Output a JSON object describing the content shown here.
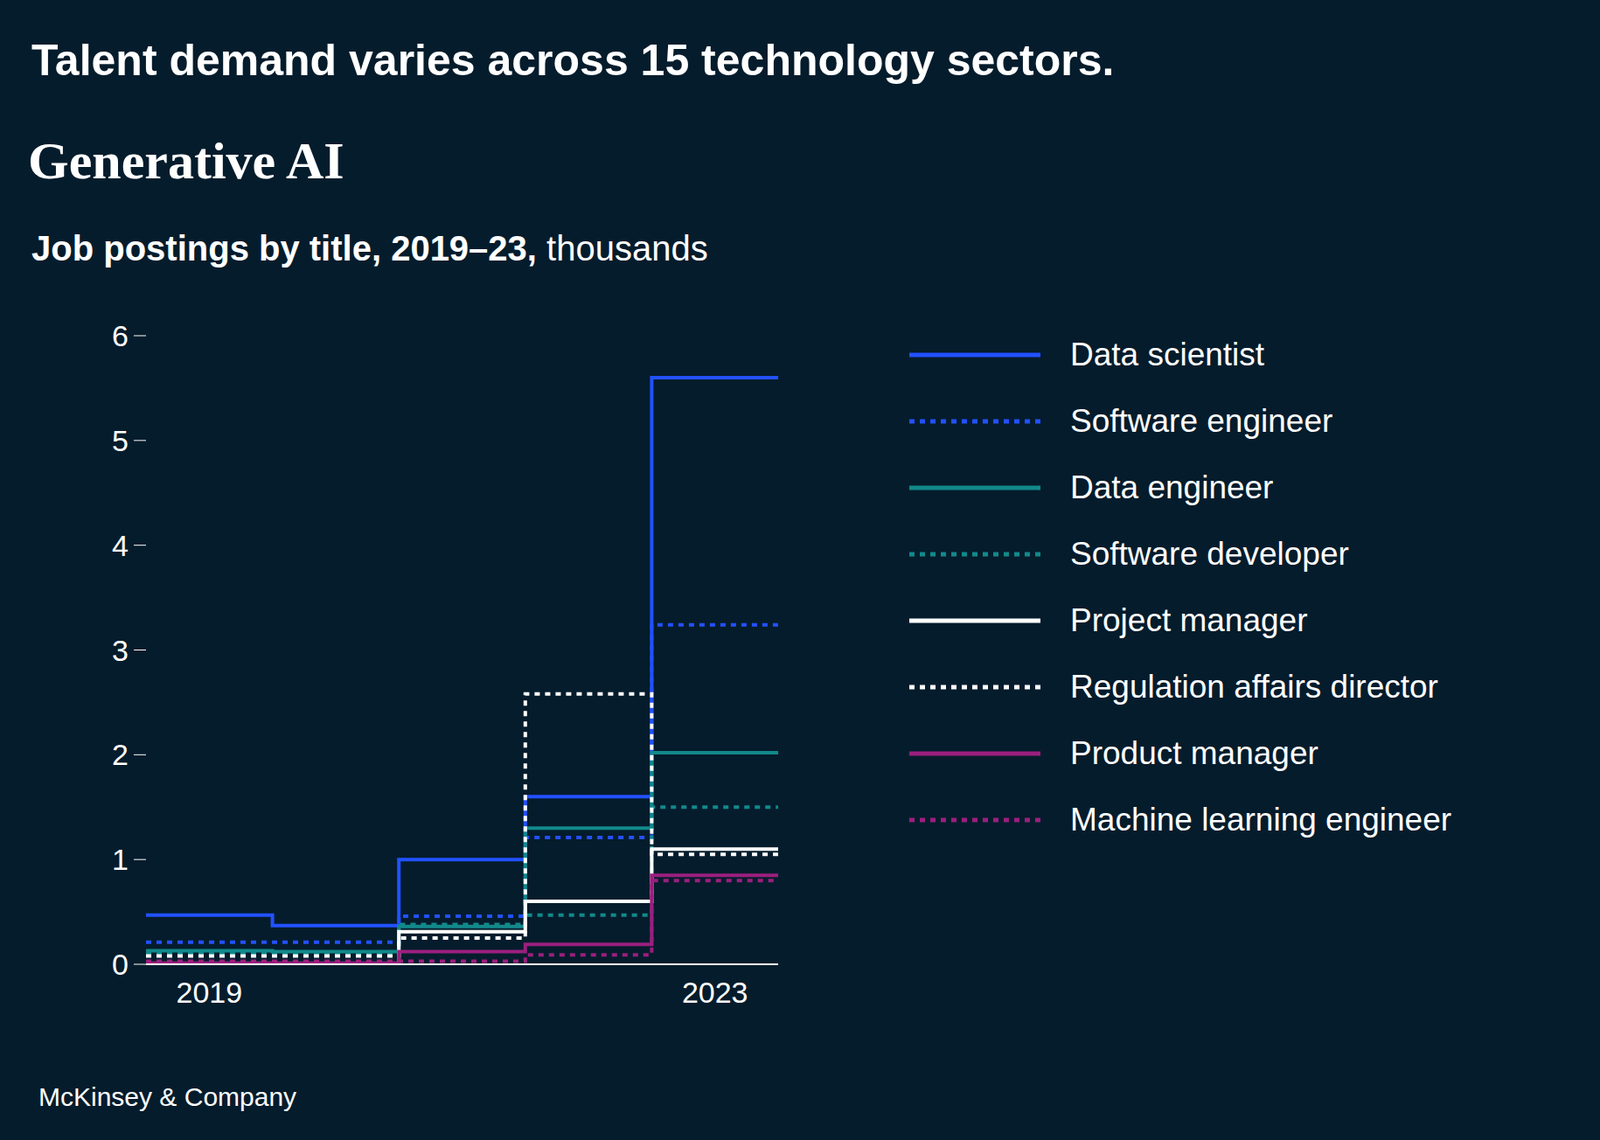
{
  "chart_data": {
    "type": "line",
    "title": "Talent demand varies across 15 technology sectors.",
    "chart_title": "Generative AI",
    "subtitle": "Job postings by title, 2019–23,",
    "units": "thousands",
    "source": "McKinsey & Company",
    "x": [
      2019,
      2020,
      2021,
      2022,
      2023
    ],
    "xlim": [
      2018.5,
      2023.5
    ],
    "xticks": [
      2019,
      2023
    ],
    "ylim": [
      0,
      6
    ],
    "yticks": [
      0,
      1,
      2,
      3,
      4,
      5,
      6
    ],
    "grid": false,
    "legend": "right",
    "series": [
      {
        "name": "Data scientist",
        "color": "#2251ff",
        "line_style": "solid",
        "values": [
          0.47,
          0.37,
          1.0,
          1.6,
          5.6
        ]
      },
      {
        "name": "Software engineer",
        "color": "#2251ff",
        "line_style": "dotted",
        "values": [
          0.21,
          0.21,
          0.46,
          1.21,
          3.24
        ]
      },
      {
        "name": "Data engineer",
        "color": "#12898a",
        "line_style": "solid",
        "values": [
          0.13,
          0.12,
          0.36,
          1.3,
          2.02
        ]
      },
      {
        "name": "Software developer",
        "color": "#12898a",
        "line_style": "dotted",
        "values": [
          0.1,
          0.1,
          0.38,
          0.47,
          1.5
        ]
      },
      {
        "name": "Project manager",
        "color": "#ffffff",
        "line_style": "solid",
        "values": [
          0,
          0,
          0.31,
          0.6,
          1.1
        ]
      },
      {
        "name": "Regulation affairs director",
        "color": "#ffffff",
        "line_style": "dotted",
        "values": [
          0.08,
          0.08,
          0.25,
          2.58,
          1.05
        ]
      },
      {
        "name": "Product manager",
        "color": "#9b1f7e",
        "line_style": "solid",
        "values": [
          0.01,
          0.01,
          0.12,
          0.19,
          0.85
        ]
      },
      {
        "name": "Machine learning engineer",
        "color": "#9b1f7e",
        "line_style": "dotted",
        "values": [
          0.03,
          0.03,
          0.03,
          0.09,
          0.8
        ]
      }
    ]
  }
}
